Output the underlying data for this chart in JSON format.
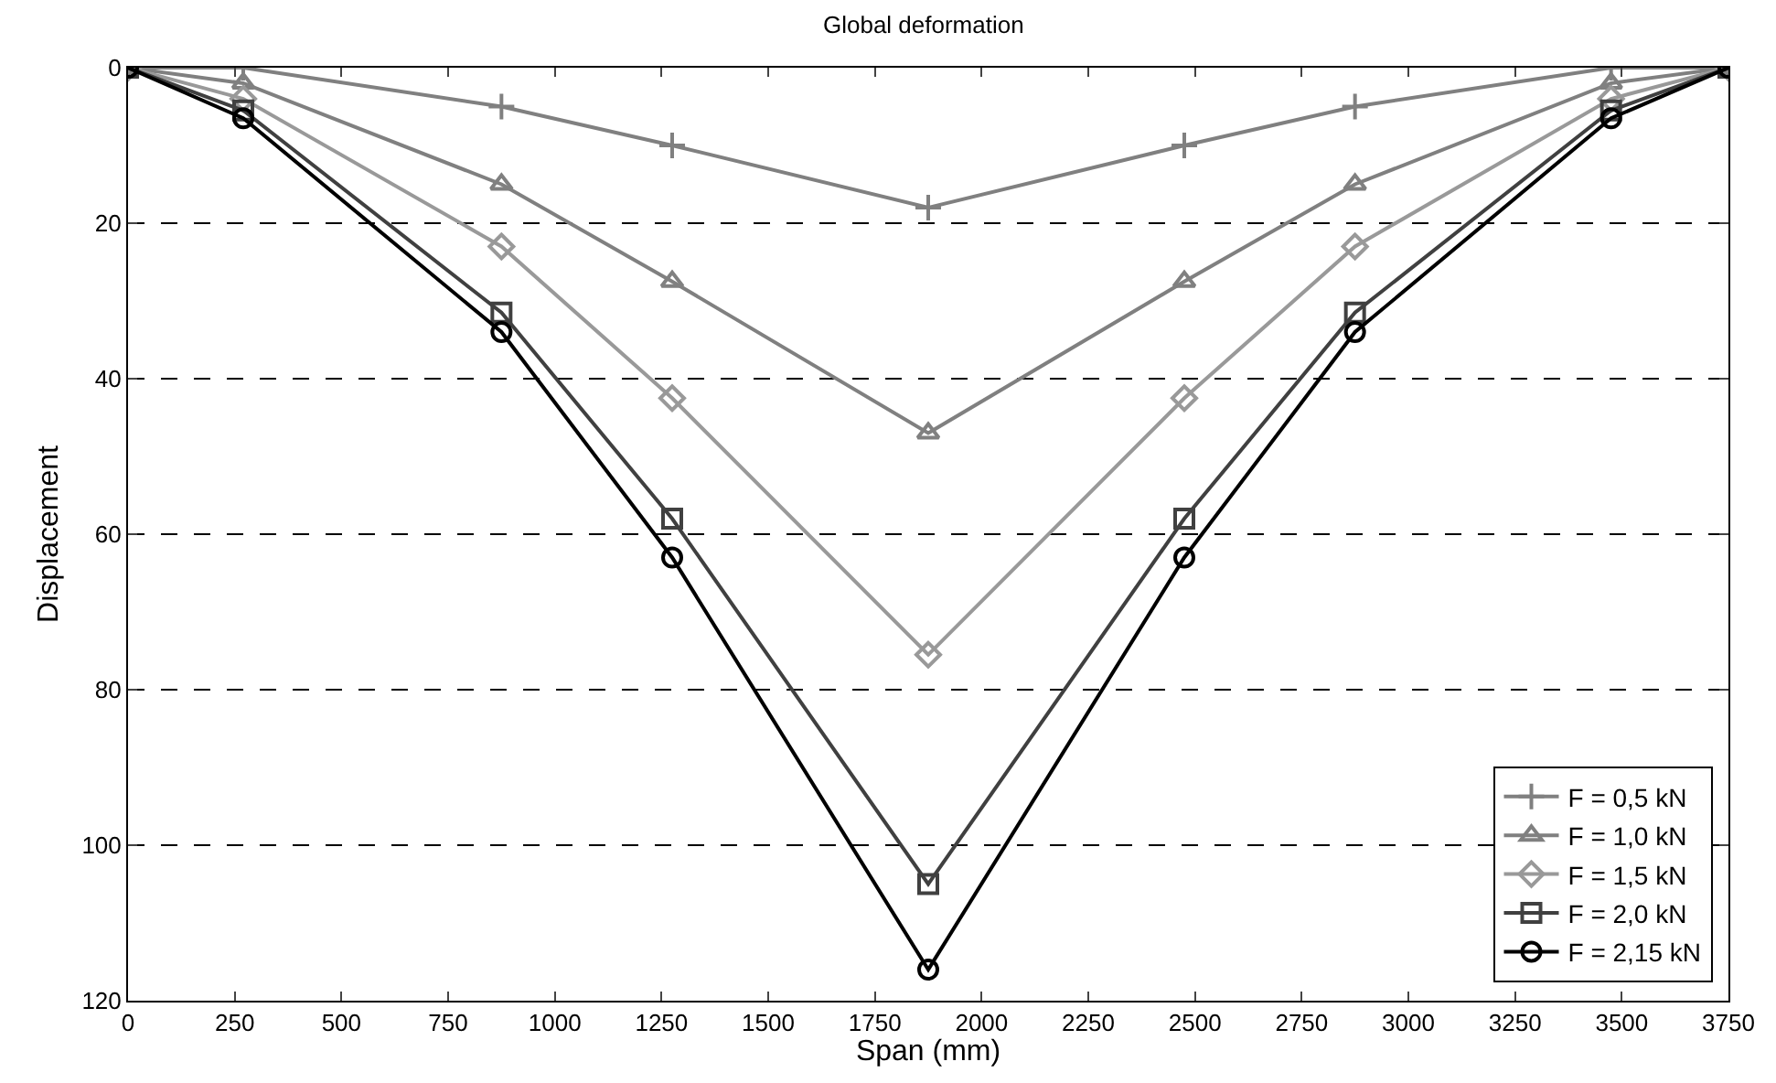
{
  "chart_data": {
    "type": "line",
    "title": "Global deformation",
    "xlabel": "Span (mm)",
    "ylabel": "Displacement",
    "x": [
      0,
      270,
      875,
      1275,
      1875,
      2475,
      2875,
      3475,
      3750
    ],
    "xlim": [
      0,
      3750
    ],
    "xticks": [
      0,
      250,
      500,
      750,
      1000,
      1250,
      1500,
      1750,
      2000,
      2250,
      2500,
      2750,
      3000,
      3250,
      3500,
      3750
    ],
    "ylim": [
      120,
      0
    ],
    "yticks": [
      0,
      20,
      40,
      60,
      80,
      100,
      120
    ],
    "grid": "y",
    "legend": "bottom right",
    "series": [
      {
        "name": "F = 0,5 kN",
        "color": "#808080",
        "marker": "cross",
        "values": [
          0,
          0,
          5,
          10,
          18,
          10,
          5,
          0,
          0
        ]
      },
      {
        "name": "F = 1,0 kN",
        "color": "#808080",
        "marker": "triangle",
        "values": [
          0,
          2,
          15,
          27.5,
          47,
          27.5,
          15,
          2,
          0
        ]
      },
      {
        "name": "F = 1,5 kN",
        "color": "#999999",
        "marker": "diamond",
        "values": [
          0,
          4,
          23,
          42.5,
          75.5,
          42.5,
          23,
          4,
          0
        ]
      },
      {
        "name": "F = 2,0 kN",
        "color": "#404040",
        "marker": "square",
        "values": [
          0,
          5.5,
          31.5,
          58,
          105,
          58,
          31.5,
          5.5,
          0
        ]
      },
      {
        "name": "F = 2,15 kN",
        "color": "#000000",
        "marker": "circle",
        "values": [
          0,
          6.5,
          34,
          63,
          116,
          63,
          34,
          6.5,
          0
        ]
      }
    ]
  }
}
